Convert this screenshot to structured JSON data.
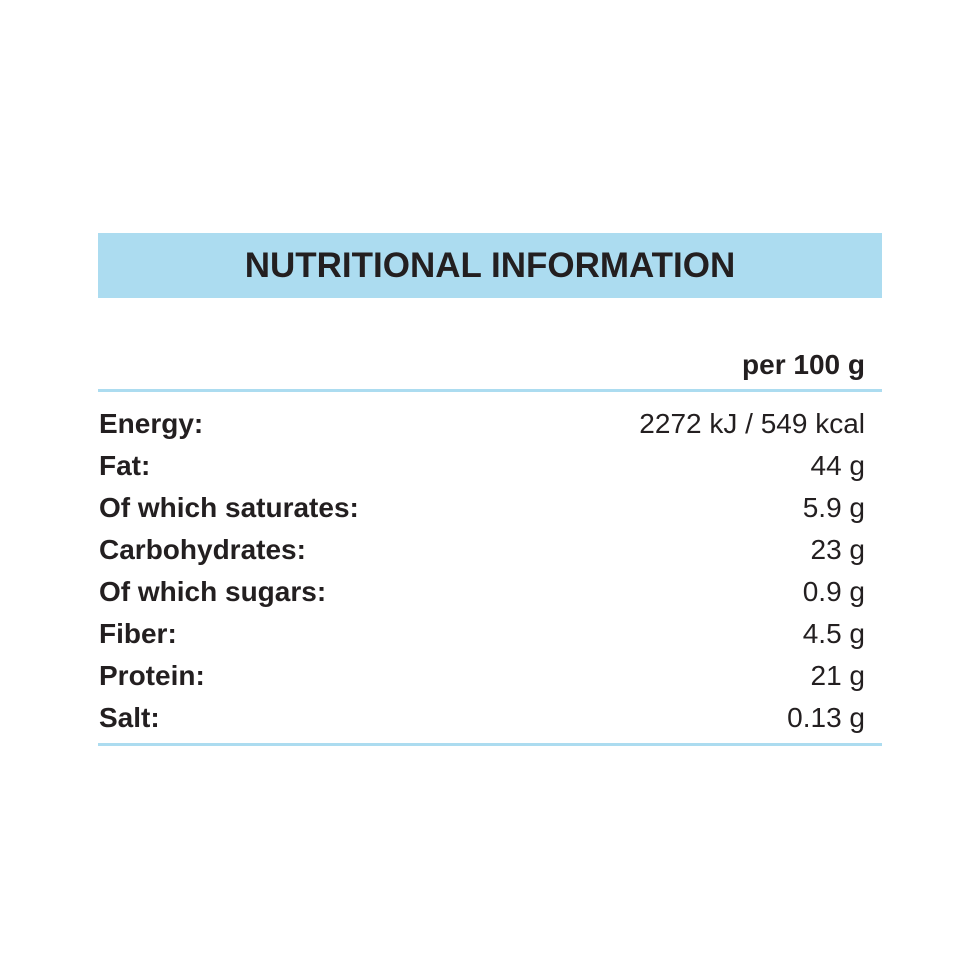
{
  "header": {
    "title": "NUTRITIONAL INFORMATION"
  },
  "table": {
    "column_header": "per 100 g",
    "rows": [
      {
        "label": "Energy:",
        "value": "2272 kJ / 549 kcal"
      },
      {
        "label": "Fat:",
        "value": "44 g"
      },
      {
        "label": "Of which saturates:",
        "value": "5.9 g"
      },
      {
        "label": "Carbohydrates:",
        "value": "23 g"
      },
      {
        "label": "Of which sugars:",
        "value": "0.9 g"
      },
      {
        "label": "Fiber:",
        "value": "4.5 g"
      },
      {
        "label": "Protein:",
        "value": "21 g"
      },
      {
        "label": "Salt:",
        "value": "0.13 g"
      }
    ]
  },
  "colors": {
    "accent_blue": "#ACDCF0",
    "text": "#231F20"
  }
}
